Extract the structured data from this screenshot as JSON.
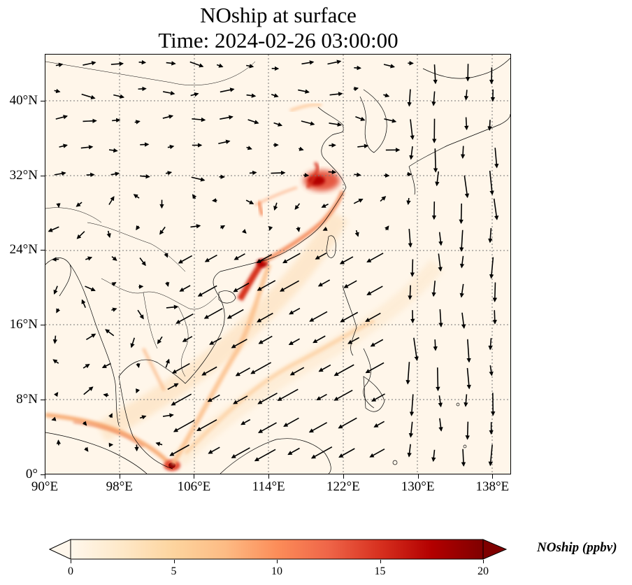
{
  "title": {
    "line1": "NOship at surface",
    "line2": "Time: 2024-02-26 03:00:00"
  },
  "map": {
    "lon_range": [
      90,
      140
    ],
    "lat_range": [
      0,
      45
    ],
    "x_ticks": [
      {
        "lon": 90,
        "label": "90°E"
      },
      {
        "lon": 98,
        "label": "98°E"
      },
      {
        "lon": 106,
        "label": "106°E"
      },
      {
        "lon": 114,
        "label": "114°E"
      },
      {
        "lon": 122,
        "label": "122°E"
      },
      {
        "lon": 130,
        "label": "130°E"
      },
      {
        "lon": 138,
        "label": "138°E"
      }
    ],
    "y_ticks": [
      {
        "lat": 0,
        "label": "0°"
      },
      {
        "lat": 8,
        "label": "8°N"
      },
      {
        "lat": 16,
        "label": "16°N"
      },
      {
        "lat": 24,
        "label": "24°N"
      },
      {
        "lat": 32,
        "label": "32°N"
      },
      {
        "lat": 40,
        "label": "40°N"
      }
    ],
    "gridlines": true,
    "background_color": "#fff6ea"
  },
  "colorbar": {
    "label": "NOship (ppbv)",
    "min": 0,
    "max": 20,
    "ticks": [
      "0",
      "5",
      "10",
      "15",
      "20"
    ],
    "colormap": "OrRd",
    "extend": "both"
  }
}
